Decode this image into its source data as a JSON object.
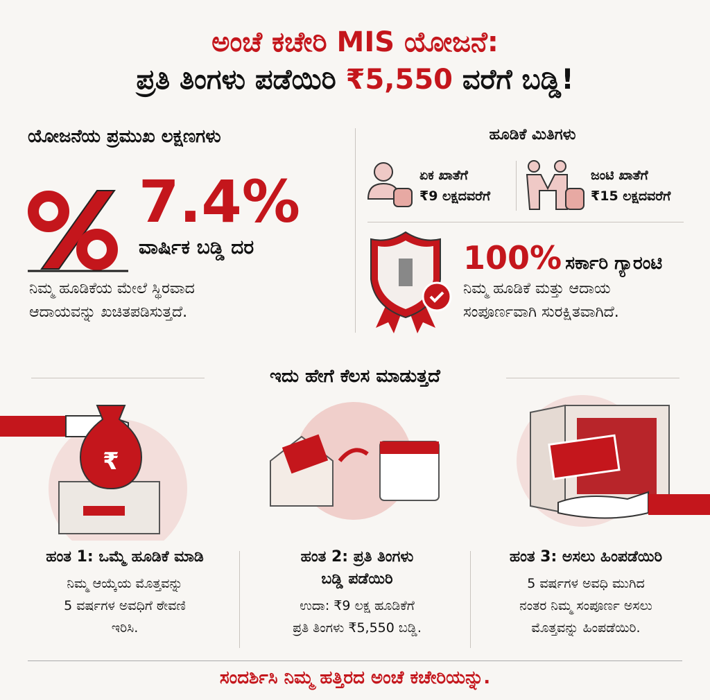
{
  "header": {
    "title_line1": "ಅಂಚೆ ಕಚೇರಿ MIS ಯೋಜನೆ:",
    "title_line2_pre": "ಪ್ರತಿ ತಿಂಗಳು ಪಡೆಯಿರಿ ",
    "title_line2_amount": "₹5,550",
    "title_line2_post": " ವರೆಗೆ ಬಡ್ಡಿ!"
  },
  "features": {
    "heading": "ಯೋಜನೆಯ ಪ್ರಮುಖ ಲಕ್ಷಣಗಳು",
    "rate": "7.4%",
    "rate_label": "ವಾರ್ಷಿಕ ಬಡ್ಡಿ ದರ",
    "desc_line1": "ನಿಮ್ಮ ಹೂಡಿಕೆಯ ಮೇಲೆ ಸ್ಥಿರವಾದ",
    "desc_line2": "ಆದಾಯವನ್ನು ಖಚಿತಪಡಿಸುತ್ತದೆ."
  },
  "limits": {
    "heading": "ಹೂಡಿಕೆ ಮಿತಿಗಳು",
    "single": {
      "label": "ಏಕ ಖಾತೆಗೆ",
      "amount": "₹9 ಲಕ್ಷದವರೆಗೆ"
    },
    "joint": {
      "label": "ಜಂಟಿ ಖಾತೆಗೆ",
      "amount": "₹15 ಲಕ್ಷದವರೆಗೆ"
    }
  },
  "guarantee": {
    "percent": "100%",
    "label": "ಸರ್ಕಾರಿ ಗ್ಯಾರಂಟಿ",
    "desc_line1": "ನಿಮ್ಮ ಹೂಡಿಕೆ ಮತ್ತು ಆದಾಯ",
    "desc_line2": "ಸಂಪೂರ್ಣವಾಗಿ ಸುರಕ್ಷಿತವಾಗಿದೆ."
  },
  "how": {
    "heading": "ಇದು ಹೇಗೆ ಕೆಲಸ ಮಾಡುತ್ತದೆ",
    "steps": [
      {
        "title": "ಹಂತ 1: ಒಮ್ಮೆ ಹೂಡಿಕೆ ಮಾಡಿ",
        "lines": [
          "ನಿಮ್ಮ ಆಯ್ಕೆಯ ಮೊತ್ತವನ್ನು",
          "5 ವರ್ಷಗಳ ಅವಧಿಗೆ ಠೇವಣಿ",
          "ಇರಿಸಿ."
        ]
      },
      {
        "title": "ಹಂತ 2: ಪ್ರತಿ ತಿಂಗಳು ಬಡ್ಡಿ ಪಡೆಯಿರಿ",
        "lines": [
          "ಉದಾ: ₹9 ಲಕ್ಷ ಹೂಡಿಕೆಗೆ",
          "ಪ್ರತಿ ತಿಂಗಳು ₹5,550 ಬಡ್ಡಿ."
        ]
      },
      {
        "title": "ಹಂತ 3: ಅಸಲು ಹಿಂಪಡೆಯಿರಿ",
        "lines": [
          "5 ವರ್ಷಗಳ ಅವಧಿ ಮುಗಿದ",
          "ನಂತರ ನಿಮ್ಮ ಸಂಪೂರ್ಣ ಅಸಲು",
          "ಮೊತ್ತವನ್ನು ಹಿಂಪಡೆಯಿರಿ."
        ]
      }
    ]
  },
  "footer": {
    "cta": "ಸಂದರ್ಶಿಸಿ ನಿಮ್ಮ ಹತ್ತಿರದ ಅಂಚೆ ಕಚೇರಿಯನ್ನು."
  },
  "icons": {
    "percent": "percent-icon",
    "single": "person-coins-icon",
    "joint": "handshake-coins-icon",
    "shield": "shield-emblem-icon",
    "bag": "money-bag-icon",
    "envelope": "envelope-cash-icon",
    "calendar": "calendar-icon",
    "safe": "safe-icon"
  },
  "colors": {
    "accent": "#c4161c",
    "soft": "#efc9c6",
    "text": "#111111",
    "background": "#f8f6f3"
  }
}
